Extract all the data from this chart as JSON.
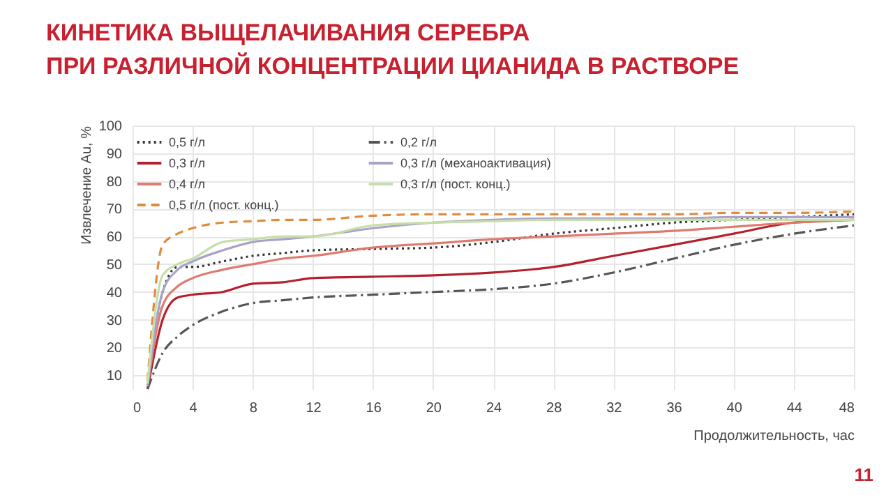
{
  "chart_data": {
    "type": "line",
    "title": "КИНЕТИКА ВЫЩЕЛАЧИВАНИЯ СЕРЕБРА\nПРИ РАЗЛИЧНОЙ КОНЦЕНТРАЦИИ ЦИАНИДА В РАСТВОРЕ",
    "xlabel": "Продолжительность, час",
    "ylabel": "Извлечение Au, %",
    "x": [
      1,
      2,
      3,
      4,
      6,
      8,
      10,
      12,
      16,
      20,
      24,
      28,
      32,
      36,
      40,
      44,
      48
    ],
    "series": [
      {
        "name": "0,5 г/л",
        "color": "#333333",
        "line_style": "dotted",
        "values": [
          6,
          40,
          49,
          49,
          51,
          53,
          54,
          55,
          55.5,
          56,
          58,
          61,
          63,
          65,
          66,
          67,
          68
        ]
      },
      {
        "name": "0,3 г/л",
        "color": "#b5202e",
        "line_style": "solid",
        "values": [
          5,
          30,
          38,
          39,
          40,
          43,
          43.5,
          45,
          45.5,
          46,
          47,
          49,
          53,
          57,
          61,
          65,
          66
        ]
      },
      {
        "name": "0,4 г/л",
        "color": "#e07a6f",
        "line_style": "solid",
        "values": [
          6,
          35,
          42,
          45,
          48,
          50,
          52,
          53,
          56,
          57.5,
          59,
          60,
          61,
          62,
          63.5,
          65,
          66
        ]
      },
      {
        "name": "0,5 г/л (пост. конц.)",
        "color": "#e08a3c",
        "line_style": "dashed",
        "values": [
          8,
          57,
          61,
          63,
          65,
          65.5,
          66,
          66,
          67.5,
          68,
          68,
          68,
          68,
          68,
          68.5,
          68.5,
          69
        ]
      },
      {
        "name": "0,2 г/л",
        "color": "#555555",
        "line_style": "dashdot",
        "values": [
          5,
          18,
          24,
          28,
          33,
          36,
          37,
          38,
          39,
          40,
          41,
          43,
          47,
          52,
          57,
          61,
          64
        ]
      },
      {
        "name": "0,3 г/л (механоактивация)",
        "color": "#a9a3c8",
        "line_style": "solid",
        "values": [
          6,
          40,
          48,
          51,
          55,
          58,
          59,
          60,
          63,
          65,
          66,
          66.5,
          66.5,
          66.5,
          67,
          67,
          67
        ]
      },
      {
        "name": "0,3 г/л (пост. конц.)",
        "color": "#c5dfa8",
        "line_style": "solid",
        "values": [
          7,
          46,
          50,
          52,
          58,
          59,
          60,
          60,
          64,
          65,
          65.5,
          66,
          66,
          66,
          66,
          66,
          66
        ]
      }
    ],
    "xlim": [
      0,
      48
    ],
    "xticks": [
      0,
      4,
      8,
      12,
      16,
      20,
      24,
      28,
      32,
      36,
      40,
      44,
      48
    ],
    "ylim": [
      5,
      100
    ],
    "yticks": [
      10,
      20,
      30,
      40,
      50,
      60,
      70,
      80,
      90,
      100
    ],
    "grid": true,
    "legend": "top left",
    "marker": "none",
    "annotations": [
      "11"
    ]
  }
}
